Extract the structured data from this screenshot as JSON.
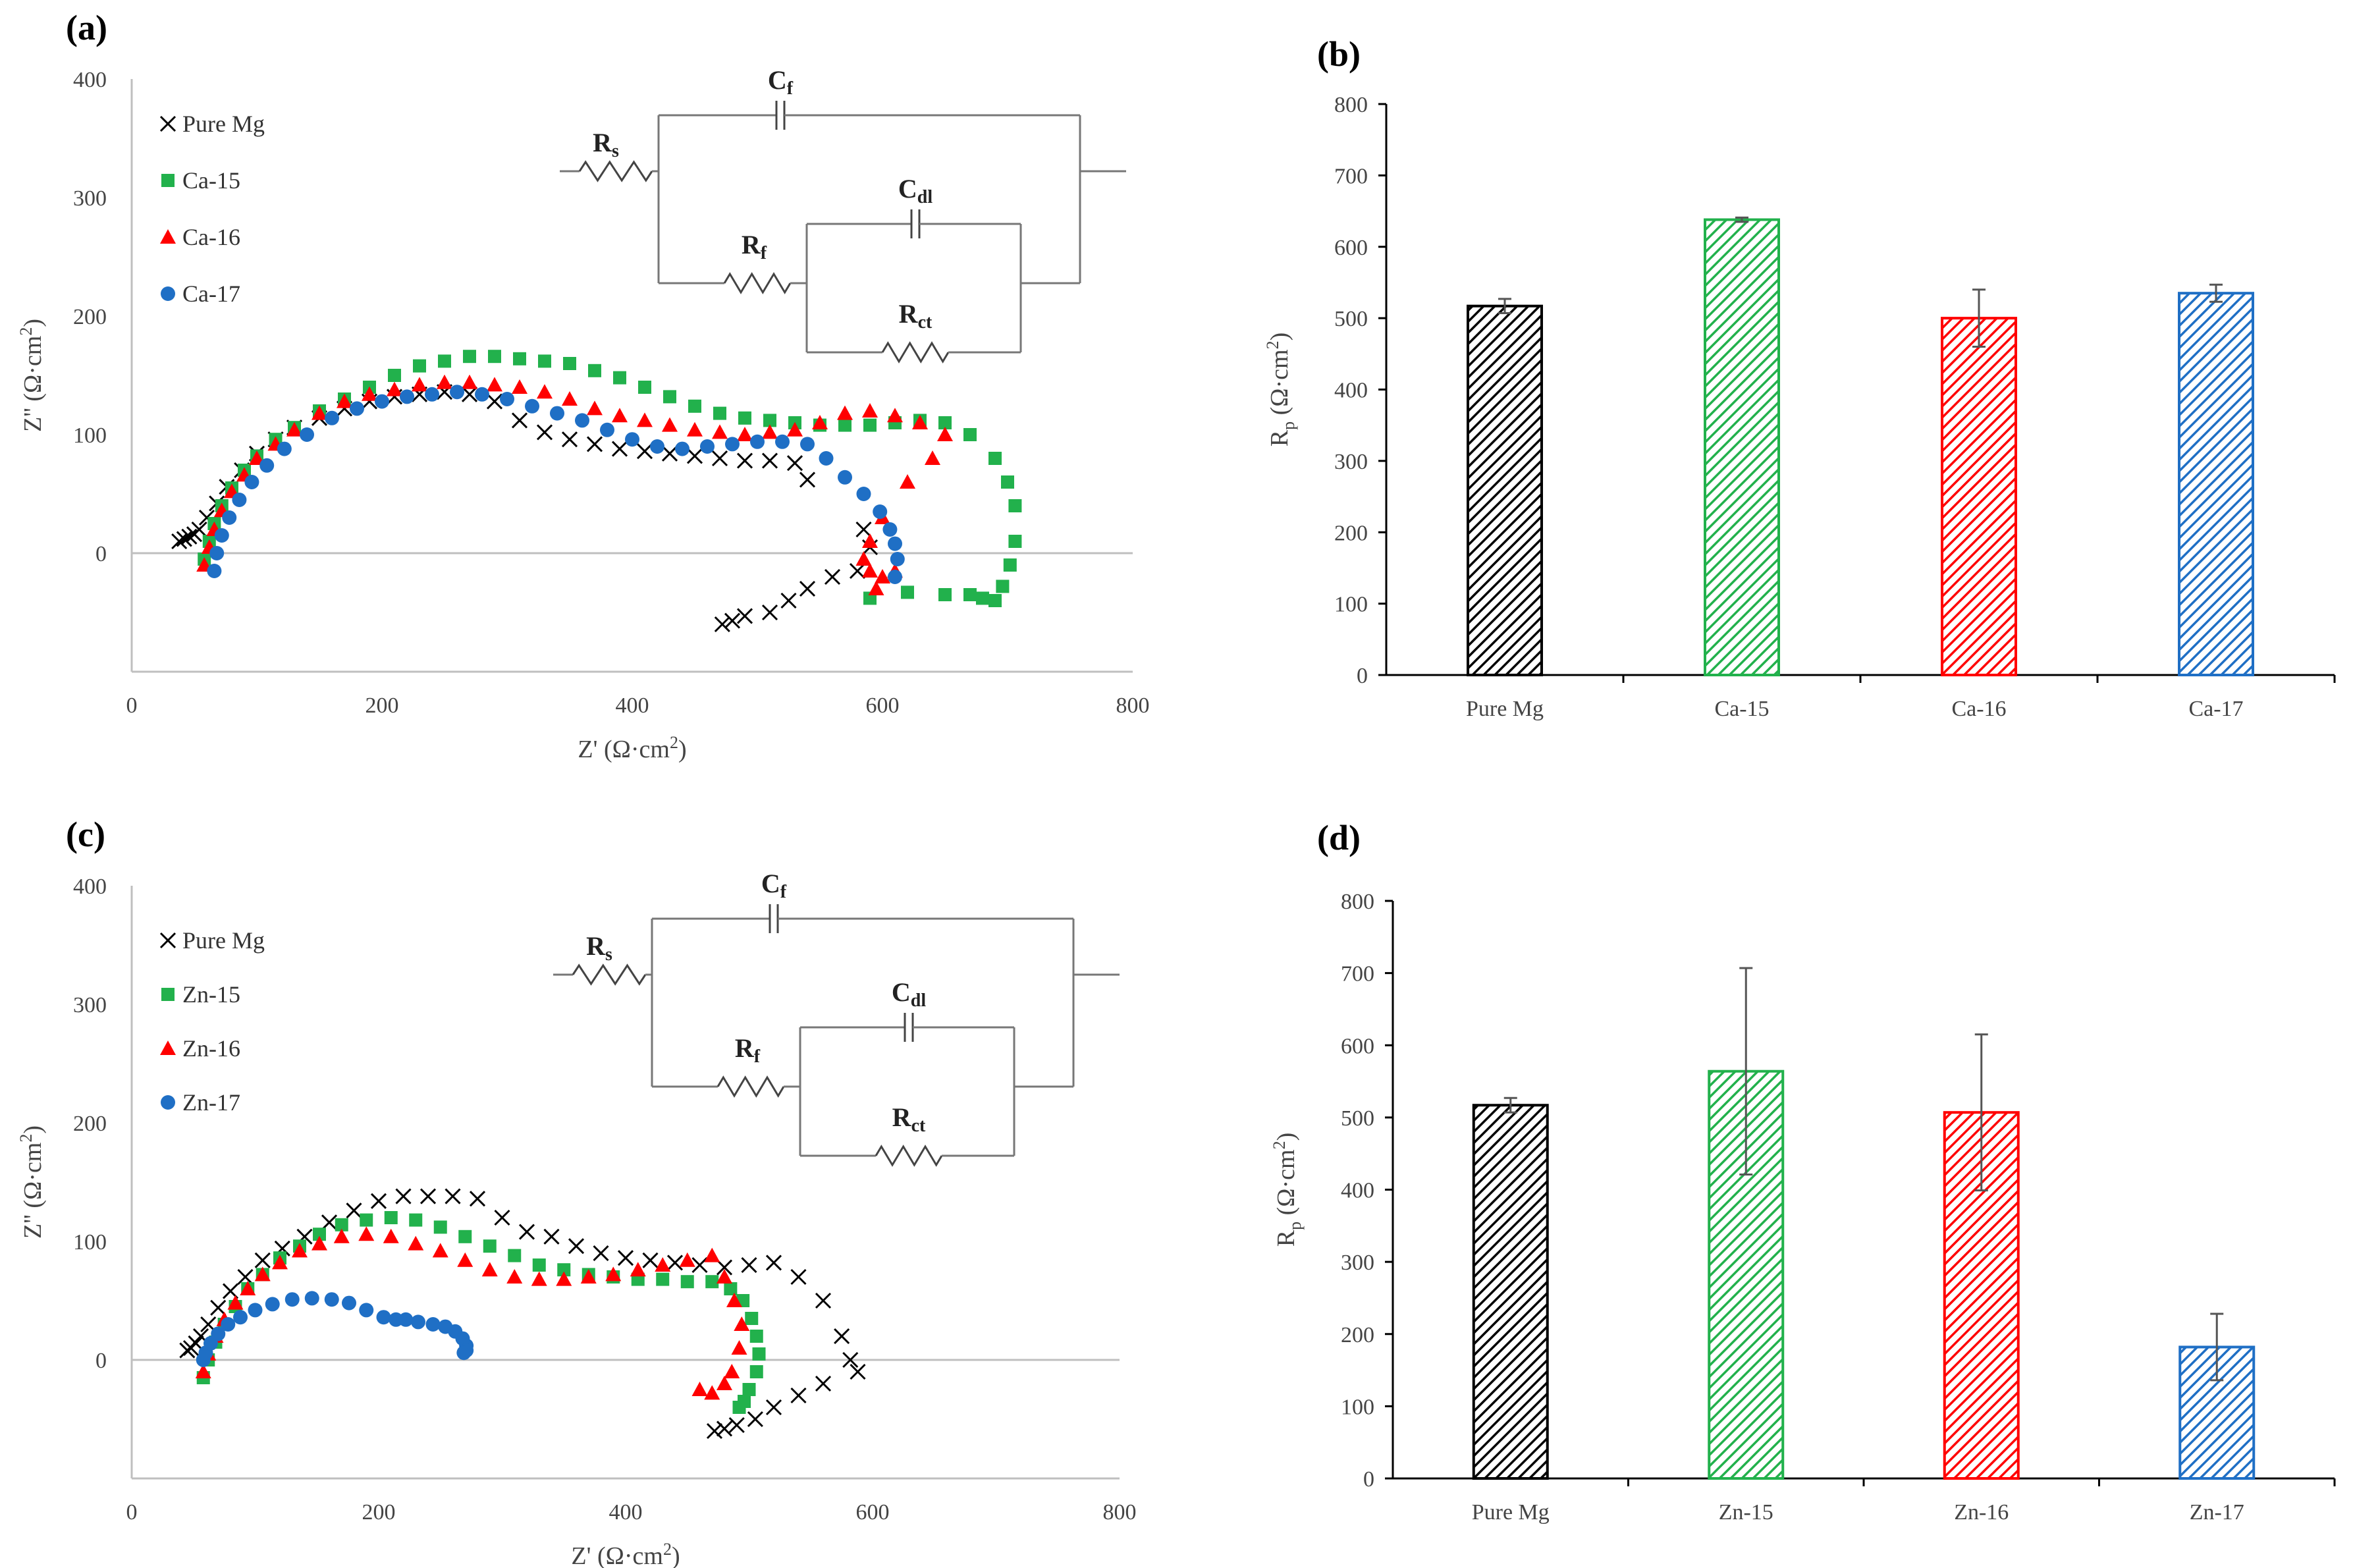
{
  "chart_data": [
    {
      "panel": "(a)",
      "type": "scatter",
      "xlabel": "Z' (Ω·cm",
      "xlabel_sup": "2",
      "ylabel": "Z'' (Ω·cm",
      "ylabel_sup": "2",
      "xlim": [
        0,
        800
      ],
      "ylim": [
        -100,
        400
      ],
      "xticks": [
        "0",
        "200",
        "400",
        "600",
        "800"
      ],
      "yticks": [
        "0",
        "100",
        "200",
        "300",
        "400"
      ],
      "circuit": {
        "cf": "C",
        "cf_sub": "f",
        "rs": "R",
        "rs_sub": "s",
        "cdl": "C",
        "cdl_sub": "dl",
        "rf": "R",
        "rf_sub": "f",
        "rct": "R",
        "rct_sub": "ct"
      },
      "series": [
        {
          "name": "Pure Mg",
          "marker": "x",
          "color": "#000000",
          "x": [
            38,
            42,
            46,
            50,
            54,
            60,
            68,
            76,
            88,
            100,
            115,
            130,
            150,
            170,
            190,
            210,
            230,
            250,
            270,
            290,
            310,
            330,
            350,
            370,
            390,
            410,
            430,
            450,
            470,
            490,
            510,
            530,
            540,
            585,
            590,
            580,
            560,
            540,
            525,
            510,
            490,
            480,
            472
          ],
          "y": [
            10,
            12,
            14,
            16,
            20,
            30,
            42,
            56,
            70,
            84,
            96,
            106,
            114,
            122,
            128,
            132,
            134,
            136,
            134,
            128,
            112,
            102,
            96,
            92,
            88,
            86,
            84,
            82,
            80,
            78,
            78,
            76,
            62,
            20,
            5,
            -15,
            -20,
            -30,
            -40,
            -50,
            -53,
            -57,
            -60
          ]
        },
        {
          "name": "Ca-15",
          "marker": "square",
          "color": "#22b14c",
          "x": [
            58,
            62,
            66,
            72,
            80,
            90,
            100,
            115,
            130,
            150,
            170,
            190,
            210,
            230,
            250,
            270,
            290,
            310,
            330,
            350,
            370,
            390,
            410,
            430,
            450,
            470,
            490,
            510,
            530,
            550,
            570,
            590,
            610,
            630,
            650,
            670,
            690,
            700,
            706,
            706,
            702,
            696,
            690,
            680,
            670,
            650,
            620,
            590
          ],
          "y": [
            -5,
            10,
            25,
            40,
            55,
            70,
            82,
            96,
            106,
            120,
            130,
            140,
            150,
            158,
            162,
            166,
            166,
            164,
            162,
            160,
            154,
            148,
            140,
            132,
            124,
            118,
            114,
            112,
            110,
            108,
            108,
            108,
            110,
            112,
            110,
            100,
            80,
            60,
            40,
            10,
            -10,
            -28,
            -40,
            -38,
            -35,
            -35,
            -33,
            -38
          ]
        },
        {
          "name": "Ca-16",
          "marker": "triangle",
          "color": "#ff0000",
          "x": [
            58,
            62,
            66,
            72,
            80,
            90,
            100,
            115,
            130,
            150,
            170,
            190,
            210,
            230,
            250,
            270,
            290,
            310,
            330,
            350,
            370,
            390,
            410,
            430,
            450,
            470,
            490,
            510,
            530,
            550,
            570,
            590,
            610,
            630,
            650,
            640,
            620,
            600,
            590,
            585,
            590,
            600,
            610,
            595
          ],
          "y": [
            -10,
            5,
            20,
            36,
            52,
            66,
            80,
            92,
            104,
            118,
            128,
            134,
            138,
            142,
            144,
            144,
            142,
            140,
            136,
            130,
            122,
            116,
            112,
            108,
            104,
            102,
            100,
            102,
            104,
            110,
            118,
            120,
            116,
            110,
            100,
            80,
            60,
            30,
            10,
            -5,
            -15,
            -20,
            -15,
            -30
          ]
        },
        {
          "name": "Ca-17",
          "marker": "circle",
          "color": "#1f6fc5",
          "x": [
            66,
            68,
            72,
            78,
            86,
            96,
            108,
            122,
            140,
            160,
            180,
            200,
            220,
            240,
            260,
            280,
            300,
            320,
            340,
            360,
            380,
            400,
            420,
            440,
            460,
            480,
            500,
            520,
            540,
            555,
            570,
            585,
            598,
            606,
            610,
            612,
            610
          ],
          "y": [
            -15,
            0,
            15,
            30,
            45,
            60,
            74,
            88,
            100,
            114,
            122,
            128,
            132,
            134,
            136,
            134,
            130,
            124,
            118,
            112,
            104,
            96,
            90,
            88,
            90,
            92,
            94,
            94,
            92,
            80,
            64,
            50,
            35,
            20,
            8,
            -5,
            -20
          ]
        }
      ]
    },
    {
      "panel": "(b)",
      "type": "bar",
      "ylabel": "R",
      "ylabel_sub": "p",
      "ylabel_rest": " (Ω·cm",
      "ylabel_sup": "2",
      "ylim": [
        0,
        800
      ],
      "yticks": [
        "0",
        "100",
        "200",
        "300",
        "400",
        "500",
        "600",
        "700",
        "800"
      ],
      "categories": [
        "Pure Mg",
        "Ca-15",
        "Ca-16",
        "Ca-17"
      ],
      "values": [
        517,
        638,
        500,
        535
      ],
      "errors": [
        10,
        3,
        40,
        12
      ],
      "colors": [
        "#000000",
        "#22b14c",
        "#ff0000",
        "#1f6fc5"
      ]
    },
    {
      "panel": "(c)",
      "type": "scatter",
      "xlabel": "Z' (Ω·cm",
      "xlabel_sup": "2",
      "ylabel": "Z'' (Ω·cm",
      "ylabel_sup": "2",
      "xlim": [
        0,
        800
      ],
      "ylim": [
        -100,
        400
      ],
      "xticks": [
        "0",
        "200",
        "400",
        "600",
        "800"
      ],
      "yticks": [
        "0",
        "100",
        "200",
        "300",
        "400"
      ],
      "circuit": {
        "cf": "C",
        "cf_sub": "f",
        "rs": "R",
        "rs_sub": "s",
        "cdl": "C",
        "cdl_sub": "dl",
        "rf": "R",
        "rf_sub": "f",
        "rct": "R",
        "rct_sub": "ct"
      },
      "series": [
        {
          "name": "Pure Mg",
          "marker": "x",
          "color": "#000000",
          "x": [
            45,
            48,
            52,
            56,
            62,
            70,
            80,
            92,
            106,
            122,
            140,
            160,
            180,
            200,
            220,
            240,
            260,
            280,
            300,
            320,
            340,
            360,
            380,
            400,
            420,
            440,
            460,
            480,
            500,
            520,
            540,
            560,
            575,
            582,
            588,
            560,
            540,
            520,
            505,
            490,
            480,
            472
          ],
          "y": [
            8,
            10,
            14,
            20,
            30,
            44,
            58,
            70,
            84,
            94,
            104,
            116,
            126,
            134,
            138,
            138,
            138,
            136,
            120,
            108,
            104,
            96,
            90,
            86,
            84,
            82,
            80,
            78,
            80,
            82,
            70,
            50,
            20,
            0,
            -10,
            -20,
            -30,
            -40,
            -50,
            -55,
            -58,
            -60
          ]
        },
        {
          "name": "Zn-15",
          "marker": "square",
          "color": "#22b14c",
          "x": [
            58,
            62,
            68,
            75,
            84,
            94,
            106,
            120,
            136,
            152,
            170,
            190,
            210,
            230,
            250,
            270,
            290,
            310,
            330,
            350,
            370,
            390,
            410,
            430,
            450,
            470,
            485,
            495,
            502,
            506,
            508,
            506,
            500,
            496,
            492
          ],
          "y": [
            -15,
            0,
            15,
            30,
            45,
            60,
            72,
            86,
            96,
            106,
            114,
            118,
            120,
            118,
            112,
            104,
            96,
            88,
            80,
            76,
            72,
            70,
            68,
            68,
            66,
            66,
            60,
            50,
            35,
            20,
            5,
            -10,
            -25,
            -35,
            -40
          ]
        },
        {
          "name": "Zn-16",
          "marker": "triangle",
          "color": "#ff0000",
          "x": [
            58,
            62,
            68,
            75,
            84,
            94,
            106,
            120,
            136,
            152,
            170,
            190,
            210,
            230,
            250,
            270,
            290,
            310,
            330,
            350,
            370,
            390,
            410,
            430,
            450,
            470,
            480,
            488,
            494,
            492,
            486,
            480,
            470,
            460
          ],
          "y": [
            -10,
            5,
            20,
            34,
            48,
            60,
            72,
            82,
            92,
            98,
            104,
            106,
            104,
            98,
            92,
            84,
            76,
            70,
            68,
            68,
            70,
            72,
            76,
            80,
            84,
            88,
            70,
            50,
            30,
            10,
            -10,
            -20,
            -28,
            -25
          ]
        },
        {
          "name": "Zn-17",
          "marker": "circle",
          "color": "#1f6fc5",
          "x": [
            58,
            60,
            64,
            70,
            78,
            88,
            100,
            114,
            130,
            146,
            162,
            176,
            190,
            204,
            214,
            222,
            232,
            244,
            254,
            262,
            268,
            271,
            271,
            269
          ],
          "y": [
            0,
            6,
            14,
            22,
            30,
            36,
            42,
            47,
            51,
            52,
            51,
            48,
            42,
            36,
            34,
            34,
            32,
            30,
            28,
            24,
            18,
            12,
            8,
            6
          ]
        }
      ]
    },
    {
      "panel": "(d)",
      "type": "bar",
      "ylabel": "R",
      "ylabel_sub": "p",
      "ylabel_rest": " (Ω·cm",
      "ylabel_sup": "2",
      "ylim": [
        0,
        800
      ],
      "yticks": [
        "0",
        "100",
        "200",
        "300",
        "400",
        "500",
        "600",
        "700",
        "800"
      ],
      "categories": [
        "Pure Mg",
        "Zn-15",
        "Zn-16",
        "Zn-17"
      ],
      "values": [
        517,
        564,
        507,
        182
      ],
      "errors": [
        10,
        143,
        108,
        46
      ],
      "colors": [
        "#000000",
        "#22b14c",
        "#ff0000",
        "#1f6fc5"
      ]
    }
  ]
}
